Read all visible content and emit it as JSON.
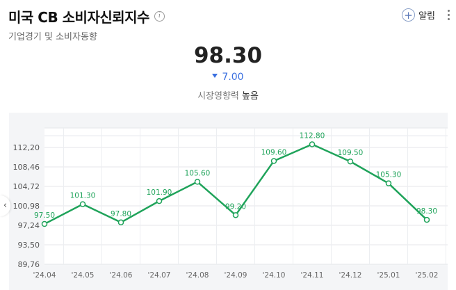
{
  "header": {
    "title": "미국 CB 소비자신뢰지수",
    "info_icon": "info-icon",
    "subtitle": "기업경기 및 소비자동향",
    "alarm_label": "알림",
    "alarm_plus": "+",
    "more_icon": "more-vertical-icon"
  },
  "summary": {
    "value": "98.30",
    "change": "7.00",
    "change_direction": "down",
    "impact_label": "시장영향력",
    "impact_value": "높음"
  },
  "nav": {
    "prev_glyph": "‹"
  },
  "colors": {
    "line": "#1fa35a",
    "change": "#3a6fe0",
    "panel": "#f4f5f7"
  },
  "chart_data": {
    "type": "line",
    "x": [
      "'24.04",
      "'24.05",
      "'24.06",
      "'24.07",
      "'24.08",
      "'24.09",
      "'24.10",
      "'24.11",
      "'24.12",
      "'25.01",
      "'25.02"
    ],
    "x_tick_labels": [
      "'24.04",
      "'24.05",
      "'24.06",
      "'24.07",
      "'24.08",
      "'24.09",
      "'24.10",
      "'24.11",
      "'24.12",
      "'25.01",
      "'25.02"
    ],
    "y_values": [
      97.5,
      101.3,
      97.8,
      101.9,
      105.6,
      99.2,
      109.6,
      112.8,
      109.5,
      105.3,
      98.3
    ],
    "data_labels": [
      "97.50",
      "101.30",
      "97.80",
      "101.90",
      "105.60",
      "99.20",
      "109.60",
      "112.80",
      "109.50",
      "105.30",
      "98.30"
    ],
    "y_ticks": [
      89.76,
      93.5,
      97.24,
      100.98,
      104.72,
      108.46,
      112.2
    ],
    "y_tick_labels": [
      "89,76",
      "93,50",
      "97,24",
      "100,98",
      "104,72",
      "108,46",
      "112,20"
    ],
    "ylim": [
      89.76,
      115.94
    ],
    "grid": true,
    "legend": "none"
  }
}
